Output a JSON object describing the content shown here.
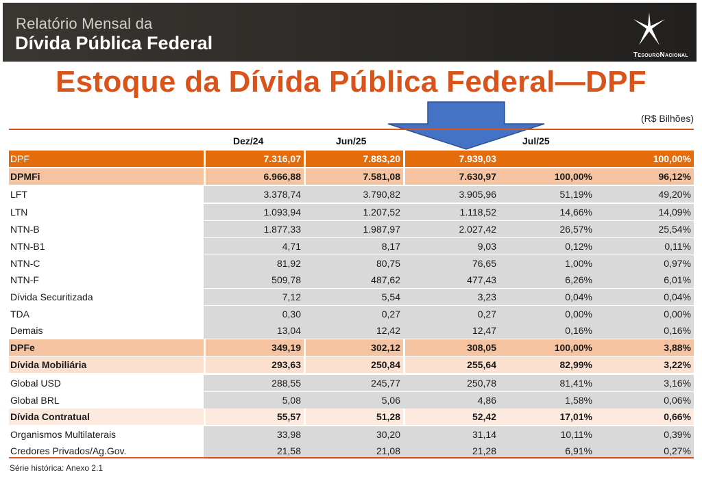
{
  "header": {
    "subtitle": "Relatório Mensal da",
    "title": "Dívida Pública Federal",
    "logo_text": "TesouroNacional"
  },
  "slide_title": "Estoque da Dívida Pública Federal—DPF",
  "units": "(R$ Bilhões)",
  "columns": [
    "Dez/24",
    "Jun/25",
    "Jul/25"
  ],
  "rows": [
    {
      "label": "DPF",
      "v": [
        "7.316,07",
        "7.883,20",
        "7.939,03",
        "",
        "100,00%"
      ]
    },
    {
      "label": "DPMFi",
      "v": [
        "6.966,88",
        "7.581,08",
        "7.630,97",
        "100,00%",
        "96,12%"
      ]
    },
    {
      "label": "LFT",
      "v": [
        "3.378,74",
        "3.790,82",
        "3.905,96",
        "51,19%",
        "49,20%"
      ]
    },
    {
      "label": "LTN",
      "v": [
        "1.093,94",
        "1.207,52",
        "1.118,52",
        "14,66%",
        "14,09%"
      ]
    },
    {
      "label": "NTN-B",
      "v": [
        "1.877,33",
        "1.987,97",
        "2.027,42",
        "26,57%",
        "25,54%"
      ]
    },
    {
      "label": "NTN-B1",
      "v": [
        "4,71",
        "8,17",
        "9,03",
        "0,12%",
        "0,11%"
      ]
    },
    {
      "label": "NTN-C",
      "v": [
        "81,92",
        "80,75",
        "76,65",
        "1,00%",
        "0,97%"
      ]
    },
    {
      "label": "NTN-F",
      "v": [
        "509,78",
        "487,62",
        "477,43",
        "6,26%",
        "6,01%"
      ]
    },
    {
      "label": "Dívida Securitizada",
      "v": [
        "7,12",
        "5,54",
        "3,23",
        "0,04%",
        "0,04%"
      ]
    },
    {
      "label": "TDA",
      "v": [
        "0,30",
        "0,27",
        "0,27",
        "0,00%",
        "0,00%"
      ]
    },
    {
      "label": "Demais",
      "v": [
        "13,04",
        "12,42",
        "12,47",
        "0,16%",
        "0,16%"
      ]
    },
    {
      "label": "DPFe",
      "v": [
        "349,19",
        "302,12",
        "308,05",
        "100,00%",
        "3,88%"
      ]
    },
    {
      "label": "Dívida Mobiliária",
      "v": [
        "293,63",
        "250,84",
        "255,64",
        "82,99%",
        "3,22%"
      ]
    },
    {
      "label": "Global USD",
      "v": [
        "288,55",
        "245,77",
        "250,78",
        "81,41%",
        "3,16%"
      ]
    },
    {
      "label": "Global BRL",
      "v": [
        "5,08",
        "5,06",
        "4,86",
        "1,58%",
        "0,06%"
      ]
    },
    {
      "label": "Dívida Contratual",
      "v": [
        "55,57",
        "51,28",
        "52,42",
        "17,01%",
        "0,66%"
      ]
    },
    {
      "label": "Organismos Multilaterais",
      "v": [
        "33,98",
        "30,20",
        "31,14",
        "10,11%",
        "0,39%"
      ]
    },
    {
      "label": "Credores Privados/Ag.Gov.",
      "v": [
        "21,58",
        "21,08",
        "21,28",
        "6,91%",
        "0,27%"
      ]
    }
  ],
  "footer": "Série histórica: Anexo 2.1",
  "colors": {
    "accent": "#d9541b",
    "dpf_row": "#e46c0a",
    "arrow": "#4472c4"
  }
}
